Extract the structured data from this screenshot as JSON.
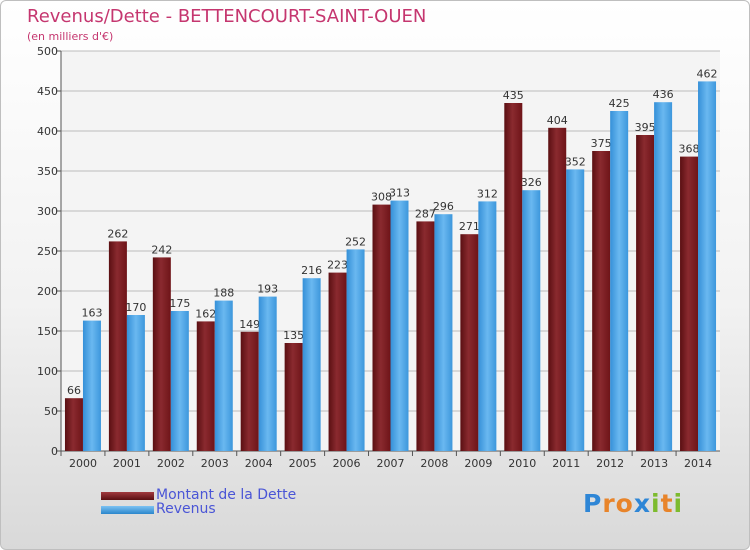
{
  "chart_data": {
    "type": "bar",
    "title": "Revenus/Dette - BETTENCOURT-SAINT-OUEN",
    "subtitle": "(en milliers d'€)",
    "categories": [
      "2000",
      "2001",
      "2002",
      "2003",
      "2004",
      "2005",
      "2006",
      "2007",
      "2008",
      "2009",
      "2010",
      "2011",
      "2012",
      "2013",
      "2014"
    ],
    "series": [
      {
        "name": "Montant de la Dette",
        "color": "#7a1b1f",
        "values": [
          66,
          262,
          242,
          162,
          149,
          135,
          223,
          308,
          287,
          271,
          435,
          404,
          375,
          395,
          368
        ]
      },
      {
        "name": "Revenus",
        "color": "#4aa3e6",
        "values": [
          163,
          170,
          175,
          188,
          193,
          216,
          252,
          313,
          296,
          312,
          326,
          352,
          425,
          436,
          462
        ]
      }
    ],
    "ylim": [
      0,
      500
    ],
    "yticks": [
      0,
      50,
      100,
      150,
      200,
      250,
      300,
      350,
      400,
      450,
      500
    ],
    "grid": true,
    "legend_placement": "bottom-left"
  },
  "logo": {
    "letters": [
      "P",
      "r",
      "o",
      "x",
      "i",
      "t",
      "i"
    ],
    "colors": [
      "#2e86d6",
      "#e8842a",
      "#e8842a",
      "#2e86d6",
      "#7dbb2e",
      "#e8842a",
      "#7dbb2e"
    ]
  }
}
